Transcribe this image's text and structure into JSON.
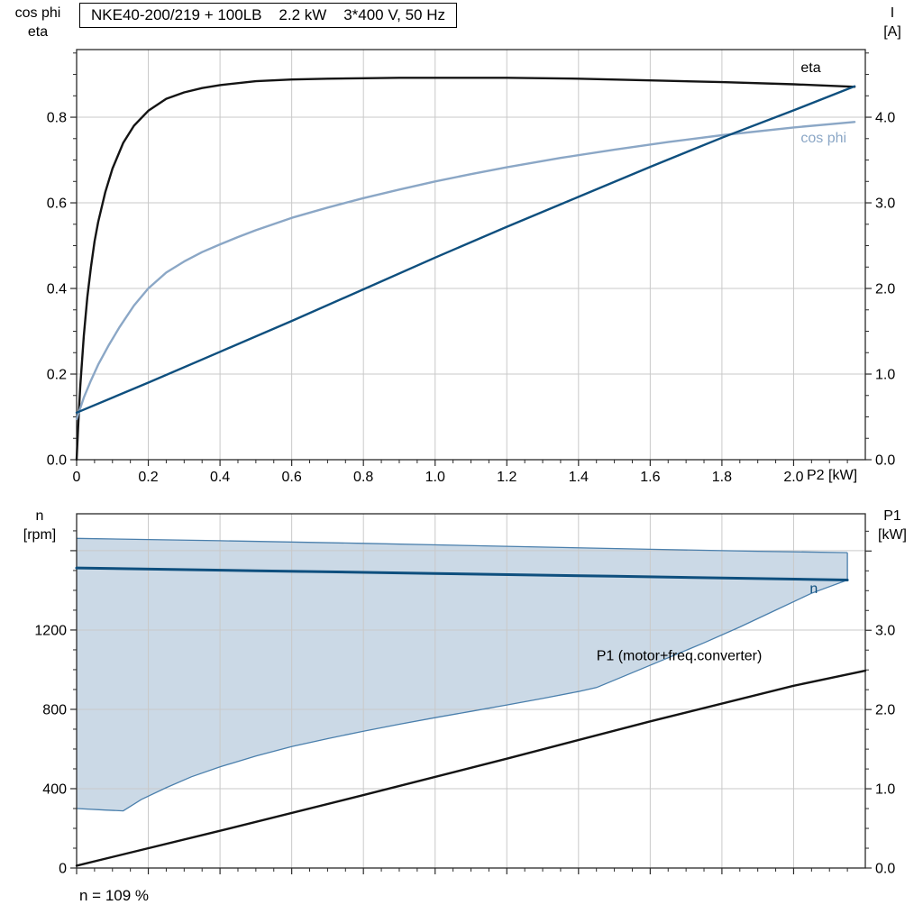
{
  "colors": {
    "grid": "#c9c9c9",
    "frame": "#2a2a2a",
    "dark_blue": "#0e4f7e",
    "light_blue": "#8ba7c6",
    "band_fill": "#cbd9e6",
    "band_stroke": "#4a7fac",
    "black": "#141414"
  },
  "chart_data": [
    {
      "type": "line",
      "name": "top-chart-eta-cosphi-current",
      "title": "NKE40-200/219 + 100LB    2.2 kW    3*400 V, 50 Hz",
      "xlabel": "P2 [kW]",
      "x": {
        "header": "P2 [kW]",
        "range": [
          0,
          2.2
        ],
        "minor": 0.05,
        "show_labels": true,
        "ticks": [
          {
            "v": 0,
            "label": "0"
          },
          {
            "v": 0.2,
            "label": "0.2"
          },
          {
            "v": 0.4,
            "label": "0.4"
          },
          {
            "v": 0.6,
            "label": "0.6"
          },
          {
            "v": 0.8,
            "label": "0.8"
          },
          {
            "v": 1.0,
            "label": "1.0"
          },
          {
            "v": 1.2,
            "label": "1.2"
          },
          {
            "v": 1.4,
            "label": "1.4"
          },
          {
            "v": 1.6,
            "label": "1.6"
          },
          {
            "v": 1.8,
            "label": "1.8"
          },
          {
            "v": 2.0,
            "label": "2.0"
          }
        ]
      },
      "y_left": {
        "header": "cos phi\neta",
        "label": "cos phi / eta",
        "range": [
          0,
          0.958
        ],
        "minor": 0.05,
        "ticks": [
          {
            "v": 0,
            "label": "0.0"
          },
          {
            "v": 0.2,
            "label": "0.2"
          },
          {
            "v": 0.4,
            "label": "0.4"
          },
          {
            "v": 0.6,
            "label": "0.6"
          },
          {
            "v": 0.8,
            "label": "0.8"
          }
        ]
      },
      "y_right": {
        "header": "I\n[A]",
        "label": "I [A]",
        "range": [
          0,
          4.79
        ],
        "minor": 0.25,
        "ticks": [
          {
            "v": 0,
            "label": "0.0"
          },
          {
            "v": 1,
            "label": "1.0"
          },
          {
            "v": 2,
            "label": "2.0"
          },
          {
            "v": 3,
            "label": "3.0"
          },
          {
            "v": 4,
            "label": "4.0"
          }
        ]
      },
      "series": [
        {
          "name": "eta",
          "axis": "left",
          "color": "#141414",
          "width": 2.4,
          "points": [
            [
              0,
              0
            ],
            [
              0.005,
              0.09
            ],
            [
              0.01,
              0.17
            ],
            [
              0.02,
              0.29
            ],
            [
              0.03,
              0.38
            ],
            [
              0.04,
              0.45
            ],
            [
              0.05,
              0.51
            ],
            [
              0.06,
              0.555
            ],
            [
              0.08,
              0.625
            ],
            [
              0.1,
              0.68
            ],
            [
              0.13,
              0.74
            ],
            [
              0.16,
              0.78
            ],
            [
              0.2,
              0.815
            ],
            [
              0.25,
              0.843
            ],
            [
              0.3,
              0.858
            ],
            [
              0.35,
              0.868
            ],
            [
              0.4,
              0.875
            ],
            [
              0.5,
              0.884
            ],
            [
              0.6,
              0.888
            ],
            [
              0.7,
              0.89
            ],
            [
              0.8,
              0.891
            ],
            [
              0.9,
              0.892
            ],
            [
              1.0,
              0.892
            ],
            [
              1.2,
              0.892
            ],
            [
              1.4,
              0.89
            ],
            [
              1.6,
              0.886
            ],
            [
              1.8,
              0.882
            ],
            [
              2.0,
              0.877
            ],
            [
              2.17,
              0.871
            ]
          ]
        },
        {
          "name": "cos phi",
          "axis": "left",
          "color": "#8ba7c6",
          "width": 2.4,
          "points": [
            [
              0,
              0.095
            ],
            [
              0.02,
              0.145
            ],
            [
              0.04,
              0.185
            ],
            [
              0.06,
              0.222
            ],
            [
              0.09,
              0.268
            ],
            [
              0.12,
              0.31
            ],
            [
              0.16,
              0.36
            ],
            [
              0.2,
              0.4
            ],
            [
              0.25,
              0.437
            ],
            [
              0.3,
              0.463
            ],
            [
              0.35,
              0.485
            ],
            [
              0.4,
              0.503
            ],
            [
              0.45,
              0.52
            ],
            [
              0.5,
              0.536
            ],
            [
              0.6,
              0.565
            ],
            [
              0.7,
              0.589
            ],
            [
              0.8,
              0.611
            ],
            [
              0.9,
              0.631
            ],
            [
              1.0,
              0.65
            ],
            [
              1.1,
              0.667
            ],
            [
              1.2,
              0.683
            ],
            [
              1.35,
              0.705
            ],
            [
              1.5,
              0.724
            ],
            [
              1.65,
              0.742
            ],
            [
              1.8,
              0.758
            ],
            [
              2.0,
              0.776
            ],
            [
              2.17,
              0.789
            ]
          ]
        },
        {
          "name": "I",
          "axis": "right",
          "color": "#0e4f7e",
          "width": 2.4,
          "points": [
            [
              0,
              0.55
            ],
            [
              0.2,
              0.9
            ],
            [
              0.4,
              1.26
            ],
            [
              0.6,
              1.62
            ],
            [
              0.8,
              1.99
            ],
            [
              1.0,
              2.36
            ],
            [
              1.2,
              2.72
            ],
            [
              1.4,
              3.07
            ],
            [
              1.6,
              3.42
            ],
            [
              1.8,
              3.76
            ],
            [
              2.0,
              4.08
            ],
            [
              2.17,
              4.36
            ]
          ]
        }
      ],
      "labels": [
        {
          "text": "eta",
          "x": 2.02,
          "y": 0.916,
          "axis": "left",
          "color": "#000000",
          "anchor": "start"
        },
        {
          "text": "cos phi",
          "x": 2.02,
          "y": 0.752,
          "axis": "left",
          "color": "#8ba7c6",
          "anchor": "start"
        }
      ]
    },
    {
      "type": "line",
      "name": "bottom-chart-speed-power",
      "title": "",
      "annotation": "n = 109 %",
      "x": {
        "header": "",
        "range": [
          0,
          2.2
        ],
        "minor": 0.05,
        "show_labels": false,
        "ticks": [
          {
            "v": 0
          },
          {
            "v": 0.2
          },
          {
            "v": 0.4
          },
          {
            "v": 0.6
          },
          {
            "v": 0.8
          },
          {
            "v": 1.0
          },
          {
            "v": 1.2
          },
          {
            "v": 1.4
          },
          {
            "v": 1.6
          },
          {
            "v": 1.8
          },
          {
            "v": 2.0
          }
        ]
      },
      "y_left": {
        "header": "n\n[rpm]",
        "label": "n [rpm]",
        "range": [
          0,
          1786
        ],
        "minor": 100,
        "ticks": [
          {
            "v": 0,
            "label": "0"
          },
          {
            "v": 400,
            "label": "400"
          },
          {
            "v": 800,
            "label": "800"
          },
          {
            "v": 1200,
            "label": "1200"
          },
          {
            "v": 1600,
            "label": ""
          }
        ]
      },
      "y_right": {
        "header": "P1\n[kW]",
        "label": "P1 [kW]",
        "range": [
          0,
          4.47
        ],
        "minor": 0.25,
        "ticks": [
          {
            "v": 0,
            "label": "0.0"
          },
          {
            "v": 1,
            "label": "1.0"
          },
          {
            "v": 2,
            "label": "2.0"
          },
          {
            "v": 3,
            "label": "3.0"
          },
          {
            "v": 4,
            "label": ""
          }
        ]
      },
      "band": {
        "name": "speed-control-range",
        "fill": "#cbd9e6",
        "stroke": "#4a7fac",
        "axis": "left",
        "upper": [
          [
            0,
            1662
          ],
          [
            0.4,
            1650
          ],
          [
            0.8,
            1637
          ],
          [
            1.2,
            1622
          ],
          [
            1.6,
            1607
          ],
          [
            1.9,
            1597
          ],
          [
            2.15,
            1590
          ]
        ],
        "lower": [
          [
            0,
            300
          ],
          [
            0.08,
            292
          ],
          [
            0.13,
            288
          ],
          [
            0.18,
            345
          ],
          [
            0.25,
            405
          ],
          [
            0.32,
            460
          ],
          [
            0.4,
            510
          ],
          [
            0.5,
            565
          ],
          [
            0.6,
            612
          ],
          [
            0.7,
            652
          ],
          [
            0.8,
            690
          ],
          [
            0.9,
            725
          ],
          [
            1.0,
            758
          ],
          [
            1.1,
            790
          ],
          [
            1.2,
            822
          ],
          [
            1.3,
            855
          ],
          [
            1.4,
            890
          ],
          [
            1.45,
            910
          ],
          [
            1.55,
            985
          ],
          [
            1.65,
            1060
          ],
          [
            1.75,
            1135
          ],
          [
            1.85,
            1215
          ],
          [
            1.95,
            1300
          ],
          [
            2.05,
            1385
          ],
          [
            2.15,
            1452
          ]
        ]
      },
      "series": [
        {
          "name": "n",
          "axis": "left",
          "color": "#0e4f7e",
          "width": 3,
          "points": [
            [
              0,
              1513
            ],
            [
              0.5,
              1499
            ],
            [
              1.0,
              1485
            ],
            [
              1.5,
              1471
            ],
            [
              2.15,
              1452
            ]
          ]
        },
        {
          "name": "P1 (motor+freq.converter)",
          "axis": "right",
          "color": "#141414",
          "width": 2.4,
          "points": [
            [
              0,
              0.03
            ],
            [
              0.4,
              0.47
            ],
            [
              0.8,
              0.92
            ],
            [
              1.2,
              1.38
            ],
            [
              1.6,
              1.85
            ],
            [
              2.0,
              2.3
            ],
            [
              2.2,
              2.49
            ]
          ]
        }
      ],
      "labels": [
        {
          "text": "n",
          "x": 2.045,
          "y": 1408,
          "axis": "left",
          "color": "#0e4f7e",
          "anchor": "start"
        },
        {
          "text": "P1 (motor+freq.converter)",
          "x": 1.45,
          "y": 2.68,
          "axis": "right",
          "color": "#000000",
          "anchor": "start"
        }
      ]
    }
  ]
}
